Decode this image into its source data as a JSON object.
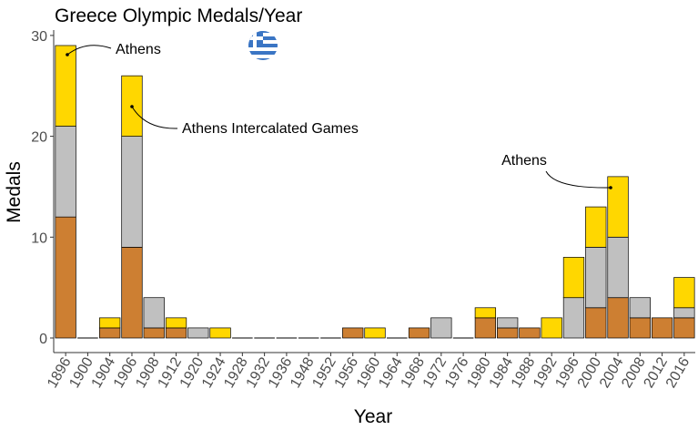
{
  "chart_data": {
    "type": "bar",
    "stacked": true,
    "title": "Greece Olympic Medals/Year",
    "xlabel": "Year",
    "ylabel": "Medals",
    "ylim": [
      0,
      30
    ],
    "yticks": [
      0,
      10,
      20,
      30
    ],
    "grid": false,
    "legend": "none",
    "categories": [
      "1896",
      "1900",
      "1904",
      "1906",
      "1908",
      "1912",
      "1920",
      "1924",
      "1928",
      "1932",
      "1936",
      "1948",
      "1952",
      "1956",
      "1960",
      "1964",
      "1968",
      "1972",
      "1976",
      "1980",
      "1984",
      "1988",
      "1992",
      "1996",
      "2000",
      "2004",
      "2008",
      "2012",
      "2016"
    ],
    "series": [
      {
        "values": [
          12,
          0,
          1,
          9,
          1,
          1,
          0,
          0,
          0,
          0,
          0,
          0,
          0,
          1,
          0,
          0,
          1,
          0,
          0,
          2,
          1,
          1,
          0,
          0,
          3,
          4,
          2,
          2,
          2
        ]
      },
      {
        "values": [
          9,
          0,
          0,
          11,
          3,
          0,
          1,
          0,
          0,
          0,
          0,
          0,
          0,
          0,
          0,
          0,
          0,
          2,
          0,
          0,
          1,
          0,
          0,
          4,
          6,
          6,
          2,
          0,
          1
        ]
      },
      {
        "values": [
          8,
          0,
          1,
          6,
          0,
          1,
          0,
          1,
          0,
          0,
          0,
          0,
          0,
          0,
          1,
          0,
          0,
          0,
          0,
          1,
          0,
          0,
          2,
          4,
          4,
          6,
          0,
          0,
          3
        ]
      }
    ],
    "colors": [
      "#cd7f32",
      "#c0c0c0",
      "#ffd700"
    ],
    "annotations": [
      {
        "text": "Athens",
        "year": "1896"
      },
      {
        "text": "Athens Intercalated Games",
        "year": "1906"
      },
      {
        "text": "Athens",
        "year": "2004"
      }
    ],
    "flag_icon": "greece-flag-icon"
  }
}
